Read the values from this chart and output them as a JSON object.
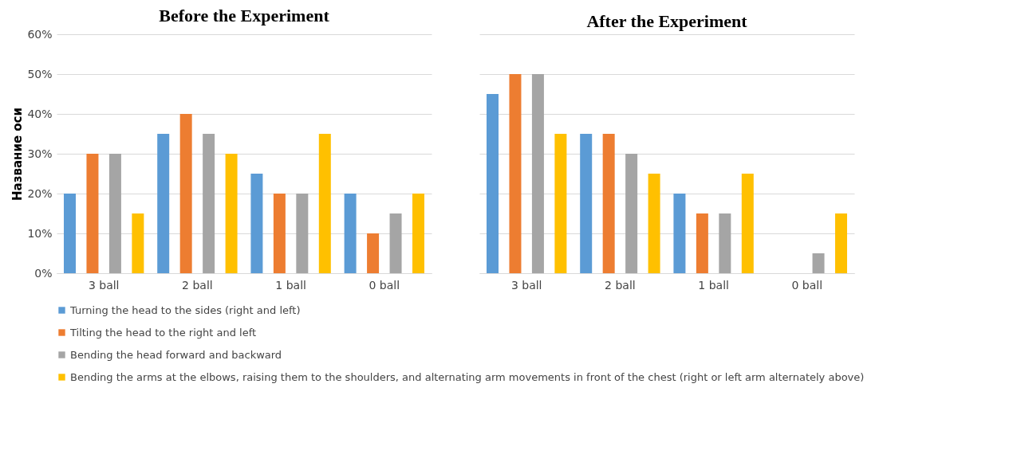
{
  "chart_data": [
    {
      "type": "bar",
      "title": "Before the Experiment",
      "ylabel": "Название оси",
      "categories": [
        "3 ball",
        "2 ball",
        "1 ball",
        "0 ball"
      ],
      "ylim": [
        0,
        60
      ],
      "yticks": [
        {
          "value": 0,
          "label": "0%"
        },
        {
          "value": 10,
          "label": "10%"
        },
        {
          "value": 20,
          "label": "20%"
        },
        {
          "value": 30,
          "label": "30%"
        },
        {
          "value": 40,
          "label": "40%"
        },
        {
          "value": 50,
          "label": "50%"
        },
        {
          "value": 60,
          "label": "60%"
        }
      ],
      "grid": "y",
      "legend": "bottom",
      "series": [
        {
          "name": "Turning the head to the sides (right and left)",
          "color": "#5b9bd5",
          "values": [
            20,
            35,
            25,
            20
          ]
        },
        {
          "name": "Tilting the head to the right and left",
          "color": "#ed7d31",
          "values": [
            30,
            40,
            20,
            10
          ]
        },
        {
          "name": "Bending the head forward and backward",
          "color": "#a5a5a5",
          "values": [
            30,
            35,
            20,
            15
          ]
        },
        {
          "name": "Bending the arms at the elbows, raising them to the shoulders, and alternating arm movements in front of the chest (right or left arm alternately above)",
          "color": "#ffc000",
          "values": [
            15,
            30,
            35,
            20
          ]
        }
      ]
    },
    {
      "type": "bar",
      "title": "After the Experiment",
      "categories": [
        "3 ball",
        "2 ball",
        "1 ball",
        "0 ball"
      ],
      "ylim": [
        0,
        60
      ],
      "yticks": [
        0,
        10,
        20,
        30,
        40,
        50,
        60
      ],
      "grid": "y",
      "legend": "bottom",
      "tick_labels": "x",
      "series": [
        {
          "name": "Turning the head to the sides (right and left)",
          "color": "#5b9bd5",
          "values": [
            45,
            35,
            20,
            0
          ]
        },
        {
          "name": "Tilting the head to the right and left",
          "color": "#ed7d31",
          "values": [
            50,
            35,
            15,
            0
          ]
        },
        {
          "name": "Bending the head forward and backward",
          "color": "#a5a5a5",
          "values": [
            50,
            30,
            15,
            5
          ]
        },
        {
          "name": "Bending the arms at the elbows, raising them to the shoulders, and alternating arm movements in front of the chest (right or left arm alternately above)",
          "color": "#ffc000",
          "values": [
            35,
            25,
            25,
            15
          ]
        }
      ]
    }
  ]
}
